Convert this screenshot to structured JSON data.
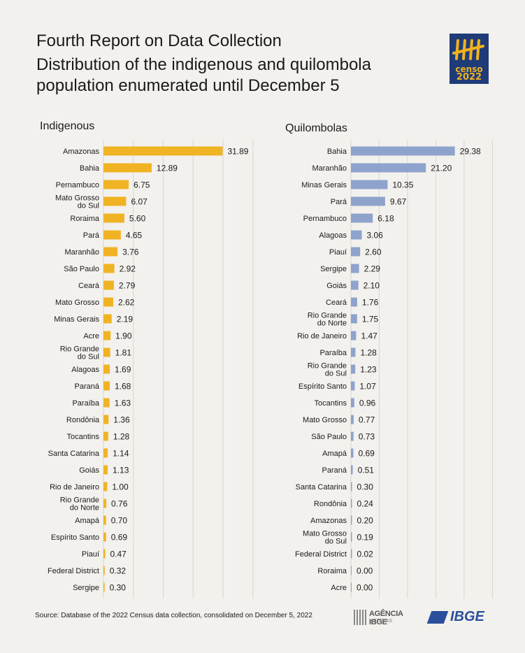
{
  "header": {
    "title_line1": "Fourth Report on Data Collection",
    "title_line2": "Distribution of the indigenous and quilombola population enumerated until December 5"
  },
  "logo": {
    "word": "censo",
    "year": "2022",
    "icon": "tally-marks-icon"
  },
  "colors": {
    "indigenous": "#f0b323",
    "quilombolas": "#8ea3cc",
    "background": "#f3f1ed",
    "logo_bg": "#1f3c78",
    "brand": "#2a4f9b"
  },
  "chart_data": [
    {
      "type": "bar",
      "orientation": "horizontal",
      "title": "Indigenous",
      "categories": [
        "Amazonas",
        "Bahia",
        "Pernambuco",
        "Mato Grosso do Sul",
        "Roraima",
        "Pará",
        "Maranhão",
        "São Paulo",
        "Ceará",
        "Mato Grosso",
        "Minas Gerais",
        "Acre",
        "Rio Grande do Sul",
        "Alagoas",
        "Paraná",
        "Paraíba",
        "Rondônia",
        "Tocantins",
        "Santa Catarina",
        "Goiás",
        "Rio de Janeiro",
        "Rio Grande do Norte",
        "Amapá",
        "Espírito Santo",
        "Piauí",
        "Federal District",
        "Sergipe"
      ],
      "values": [
        31.89,
        12.89,
        6.75,
        6.07,
        5.6,
        4.65,
        3.76,
        2.92,
        2.79,
        2.62,
        2.19,
        1.9,
        1.81,
        1.69,
        1.68,
        1.63,
        1.36,
        1.28,
        1.14,
        1.13,
        1.0,
        0.76,
        0.7,
        0.69,
        0.47,
        0.32,
        0.3
      ],
      "value_labels": [
        "31.89",
        "12.89",
        "6.75",
        "6.07",
        "5.60",
        "4.65",
        "3.76",
        "2.92",
        "2.79",
        "2.62",
        "2.19",
        "1.90",
        "1.81",
        "1.69",
        "1.68",
        "1.63",
        "1.36",
        "1.28",
        "1.14",
        "1.13",
        "1.00",
        "0.76",
        "0.70",
        "0.69",
        "0.47",
        "0.32",
        "0.30"
      ],
      "xlim": [
        0,
        40
      ],
      "grid": true,
      "color": "#f0b323"
    },
    {
      "type": "bar",
      "orientation": "horizontal",
      "title": "Quilombolas",
      "categories": [
        "Bahia",
        "Maranhão",
        "Minas Gerais",
        "Pará",
        "Pernambuco",
        "Alagoas",
        "Piauí",
        "Sergipe",
        "Goiás",
        "Ceará",
        "Rio Grande do Norte",
        "Rio de Janeiro",
        "Paraíba",
        "Rio Grande do Sul",
        "Espírito Santo",
        "Tocantins",
        "Mato Grosso",
        "São Paulo",
        "Amapá",
        "Paraná",
        "Santa Catarina",
        "Rondônia",
        "Amazonas",
        "Mato Grosso do Sul",
        "Federal District",
        "Roraima",
        "Acre"
      ],
      "values": [
        29.38,
        21.2,
        10.35,
        9.67,
        6.18,
        3.06,
        2.6,
        2.29,
        2.1,
        1.76,
        1.75,
        1.47,
        1.28,
        1.23,
        1.07,
        0.96,
        0.77,
        0.73,
        0.69,
        0.51,
        0.3,
        0.24,
        0.2,
        0.19,
        0.02,
        0.0,
        0.0
      ],
      "value_labels": [
        "29.38",
        "21.20",
        "10.35",
        "9.67",
        "6.18",
        "3.06",
        "2.60",
        "2.29",
        "2.10",
        "1.76",
        "1.75",
        "1.47",
        "1.28",
        "1.23",
        "1.07",
        "0.96",
        "0.77",
        "0.73",
        "0.69",
        "0.51",
        "0.30",
        "0.24",
        "0.20",
        "0.19",
        "0.02",
        "0.00",
        "0.00"
      ],
      "xlim": [
        0,
        40
      ],
      "grid": true,
      "color": "#8ea3cc"
    }
  ],
  "footer": {
    "source": "Source: Database of the 2022 Census data collection, consolidated on December 5, 2022",
    "agencia_main": "AGÊNCIA IBGE",
    "agencia_sub": "NOTÍCIAS",
    "ibge": "IBGE"
  }
}
